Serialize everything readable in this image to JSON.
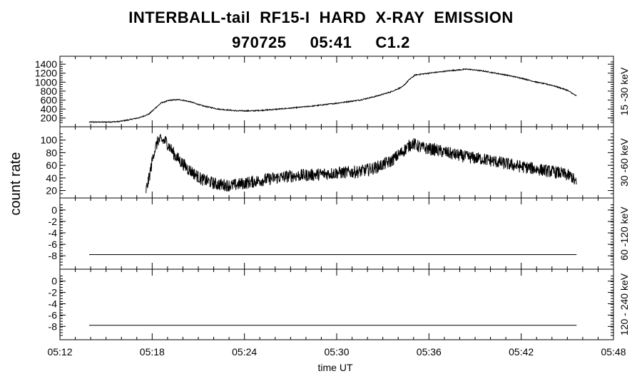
{
  "chart_data": {
    "type": "line",
    "title": "INTERBALL-tail  RF15-I  HARD  X-RAY  EMISSION",
    "subtitle": "970725     05:41     C1.2",
    "ylabel": "count rate",
    "xlabel": "time UT",
    "x_ticks": [
      "05:12",
      "05:18",
      "05:24",
      "05:30",
      "05:36",
      "05:42",
      "05:48"
    ],
    "x_range_minutes": [
      0,
      36
    ],
    "line_color": "#000000",
    "panels": [
      {
        "name": "15 -30 keV",
        "ylim": [
          100,
          1450
        ],
        "yticks": [
          200,
          400,
          600,
          800,
          1000,
          1200,
          1400
        ],
        "ytick_labels": [
          "200",
          "400",
          "600",
          "800",
          "1000",
          "1200",
          "1400"
        ],
        "noise": 12,
        "start": 1.9,
        "end": 33.6,
        "points": [
          [
            1.9,
            110
          ],
          [
            3,
            110
          ],
          [
            3.8,
            120
          ],
          [
            4.5,
            160
          ],
          [
            5.2,
            210
          ],
          [
            5.8,
            290
          ],
          [
            6.2,
            420
          ],
          [
            6.6,
            540
          ],
          [
            7.2,
            600
          ],
          [
            7.8,
            610
          ],
          [
            8.5,
            560
          ],
          [
            9.3,
            470
          ],
          [
            10.3,
            400
          ],
          [
            11.5,
            360
          ],
          [
            12.5,
            360
          ],
          [
            13.5,
            380
          ],
          [
            15,
            420
          ],
          [
            16.5,
            470
          ],
          [
            18,
            530
          ],
          [
            19.5,
            600
          ],
          [
            20.5,
            680
          ],
          [
            21.5,
            780
          ],
          [
            22.3,
            900
          ],
          [
            22.7,
            1050
          ],
          [
            23.1,
            1160
          ],
          [
            24,
            1200
          ],
          [
            25.5,
            1260
          ],
          [
            26.5,
            1290
          ],
          [
            27.5,
            1250
          ],
          [
            29,
            1160
          ],
          [
            30,
            1090
          ],
          [
            31,
            1000
          ],
          [
            32,
            930
          ],
          [
            33,
            820
          ],
          [
            33.6,
            690
          ]
        ]
      },
      {
        "name": "30 -60 keV",
        "ylim": [
          15,
          112
        ],
        "yticks": [
          20,
          40,
          60,
          80,
          100
        ],
        "ytick_labels": [
          "20",
          "40",
          "60",
          "80",
          "100"
        ],
        "noise": 10,
        "start": 5.6,
        "end": 33.6,
        "points": [
          [
            5.6,
            20
          ],
          [
            5.8,
            40
          ],
          [
            6.1,
            80
          ],
          [
            6.4,
            100
          ],
          [
            6.9,
            98
          ],
          [
            7.5,
            75
          ],
          [
            8.3,
            55
          ],
          [
            9.2,
            38
          ],
          [
            10.2,
            30
          ],
          [
            11.2,
            28
          ],
          [
            12.3,
            33
          ],
          [
            13.5,
            38
          ],
          [
            15,
            43
          ],
          [
            16.5,
            45
          ],
          [
            18,
            48
          ],
          [
            19.5,
            50
          ],
          [
            20.5,
            56
          ],
          [
            21.5,
            66
          ],
          [
            22.3,
            82
          ],
          [
            22.9,
            95
          ],
          [
            23.5,
            88
          ],
          [
            24.5,
            84
          ],
          [
            25.5,
            78
          ],
          [
            26.5,
            73
          ],
          [
            27.5,
            70
          ],
          [
            28.5,
            65
          ],
          [
            29.5,
            60
          ],
          [
            30.5,
            56
          ],
          [
            31.5,
            52
          ],
          [
            32.5,
            48
          ],
          [
            33.3,
            42
          ],
          [
            33.6,
            30
          ]
        ]
      },
      {
        "name": "60 -120 keV",
        "ylim": [
          -9.6,
          1.1
        ],
        "yticks": [
          -8,
          -6,
          -4,
          -2,
          0
        ],
        "ytick_labels": [
          "-8",
          "-6",
          "-4",
          "-2",
          "0"
        ],
        "noise": 0,
        "start": 1.9,
        "end": 33.6,
        "points": [
          [
            1.9,
            -7.8
          ],
          [
            33.6,
            -7.8
          ]
        ]
      },
      {
        "name": "120 - 240 keV",
        "ylim": [
          -9.6,
          1.1
        ],
        "yticks": [
          -8,
          -6,
          -4,
          -2,
          0
        ],
        "ytick_labels": [
          "-8",
          "-6",
          "-4",
          "-2",
          "0"
        ],
        "noise": 0,
        "start": 1.9,
        "end": 33.6,
        "points": [
          [
            1.9,
            -7.8
          ],
          [
            33.6,
            -7.8
          ]
        ]
      }
    ]
  }
}
